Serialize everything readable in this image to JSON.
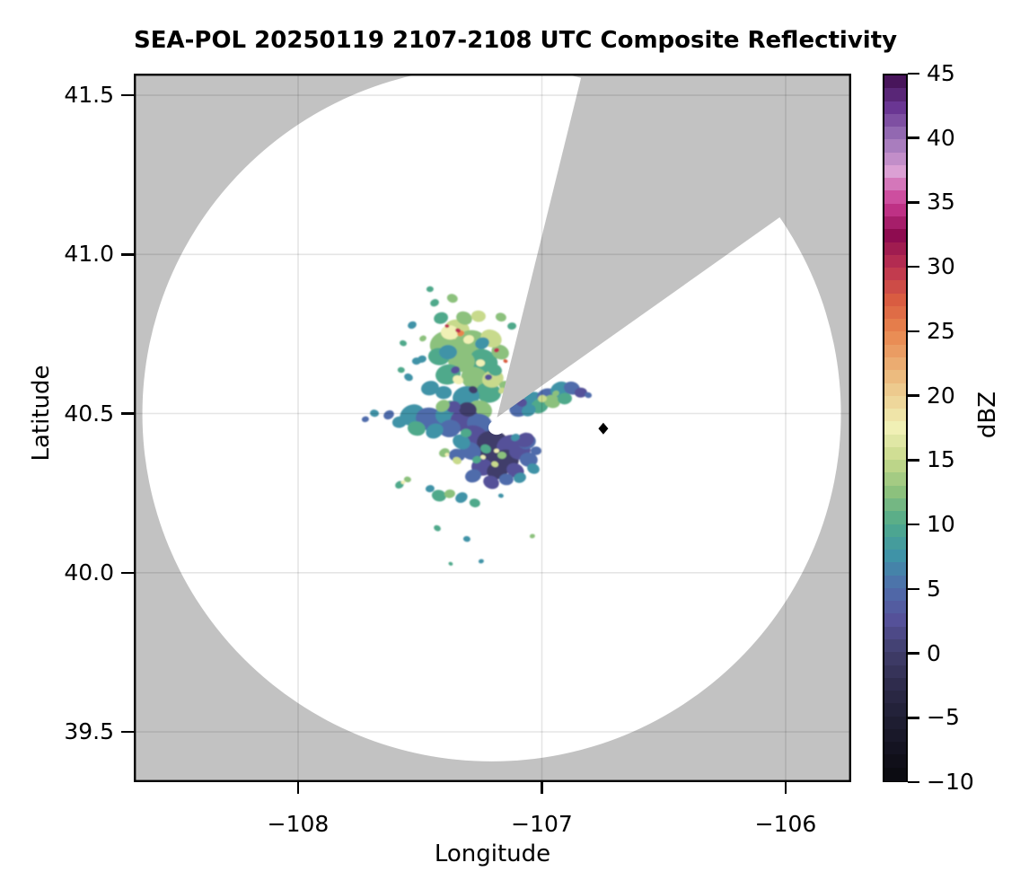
{
  "chart_data": {
    "type": "radar_composite_reflectivity_map",
    "title": "SEA-POL 20250119 2107-2108 UTC Composite Reflectivity",
    "xlabel": "Longitude",
    "ylabel": "Latitude",
    "xlim": [
      -108.674,
      -105.731
    ],
    "ylim": [
      39.342,
      41.568
    ],
    "grid": true,
    "xticks": [
      {
        "v": -108,
        "label": "−108"
      },
      {
        "v": -107,
        "label": "−107"
      },
      {
        "v": -106,
        "label": "−106"
      }
    ],
    "yticks": [
      {
        "v": 41.5,
        "label": "41.5"
      },
      {
        "v": 41.0,
        "label": "41.0"
      },
      {
        "v": 40.5,
        "label": "40.5"
      },
      {
        "v": 40.0,
        "label": "40.0"
      },
      {
        "v": 39.5,
        "label": "39.5"
      }
    ],
    "colorbar": {
      "label": "dBZ",
      "min": -10,
      "max": 45,
      "band_dbz": 1,
      "ticks": [
        {
          "v": 45,
          "label": "45"
        },
        {
          "v": 40,
          "label": "40"
        },
        {
          "v": 35,
          "label": "35"
        },
        {
          "v": 30,
          "label": "30"
        },
        {
          "v": 25,
          "label": "25"
        },
        {
          "v": 20,
          "label": "20"
        },
        {
          "v": 15,
          "label": "15"
        },
        {
          "v": 10,
          "label": "10"
        },
        {
          "v": 5,
          "label": "5"
        },
        {
          "v": 0,
          "label": "0"
        },
        {
          "v": -5,
          "label": "−5"
        },
        {
          "v": -10,
          "label": "−10"
        }
      ],
      "anchors": [
        [
          -10,
          "#0a0a0e"
        ],
        [
          -7.5,
          "#141321"
        ],
        [
          -5,
          "#201f35"
        ],
        [
          -2.5,
          "#2f2c4d"
        ],
        [
          0,
          "#403e6b"
        ],
        [
          2.5,
          "#555199"
        ],
        [
          5,
          "#4f6cab"
        ],
        [
          7.5,
          "#3f93a7"
        ],
        [
          10,
          "#4fa98b"
        ],
        [
          12.5,
          "#8cc17d"
        ],
        [
          15,
          "#c8da8c"
        ],
        [
          17.5,
          "#f0f0b5"
        ],
        [
          20,
          "#eed195"
        ],
        [
          22.5,
          "#ebac71"
        ],
        [
          25,
          "#e8854e"
        ],
        [
          27.5,
          "#d95c41"
        ],
        [
          30,
          "#bc3351"
        ],
        [
          32.5,
          "#8e0c50"
        ],
        [
          35,
          "#ca3a92"
        ],
        [
          37.5,
          "#dba0d4"
        ],
        [
          40,
          "#9c74b8"
        ],
        [
          42.5,
          "#6a3693"
        ],
        [
          45,
          "#3f0d4d"
        ]
      ]
    },
    "background": {
      "outside_range_color": "#c2c2c2",
      "inside_range_color": "#ffffff",
      "grid_color": "#000000",
      "grid_opacity": 0.1
    },
    "radar": {
      "center": {
        "lon": -107.206,
        "lat": 40.499
      },
      "range_radius_deg_lon": 1.433,
      "blocked_sector_azimuth_deg": {
        "from": 13.9,
        "to": 54.7
      },
      "site_marker": {
        "lon": -106.748,
        "lat": 40.453,
        "shape": "diamond",
        "color": "#000000"
      },
      "clear_gap": {
        "lon": -107.186,
        "lat": 40.456
      }
    },
    "echoes_format": [
      "lon",
      "lat",
      "dbz",
      "radius_px"
    ],
    "echoes": [
      [
        -107.403,
        40.721,
        12.5,
        16
      ],
      [
        -107.348,
        40.764,
        15,
        14
      ],
      [
        -107.293,
        40.721,
        12.5,
        18
      ],
      [
        -107.238,
        40.665,
        10,
        16
      ],
      [
        -107.33,
        40.665,
        12.5,
        15
      ],
      [
        -107.385,
        40.623,
        10,
        14
      ],
      [
        -107.274,
        40.609,
        12.5,
        16
      ],
      [
        -107.219,
        40.566,
        10,
        14
      ],
      [
        -107.311,
        40.552,
        7.5,
        15
      ],
      [
        -107.367,
        40.51,
        10,
        13
      ],
      [
        -107.256,
        40.51,
        12.5,
        14
      ],
      [
        -107.201,
        40.609,
        15,
        12
      ],
      [
        -107.171,
        40.693,
        12.5,
        10
      ],
      [
        -107.422,
        40.679,
        10,
        12
      ],
      [
        -107.459,
        40.58,
        7.5,
        10
      ],
      [
        -107.208,
        40.736,
        15,
        12
      ],
      [
        -107.378,
        40.755,
        17.5,
        10
      ],
      [
        -107.414,
        40.8,
        10,
        8
      ],
      [
        -107.319,
        40.8,
        12.5,
        9
      ],
      [
        -107.26,
        40.806,
        15,
        8
      ],
      [
        -107.3,
        40.733,
        17.5,
        6
      ],
      [
        -107.344,
        40.606,
        17.5,
        6
      ],
      [
        -107.252,
        40.659,
        17.5,
        5
      ],
      [
        -107.333,
        40.752,
        25,
        4
      ],
      [
        -107.344,
        40.761,
        30,
        3
      ],
      [
        -107.389,
        40.775,
        30,
        2.5
      ],
      [
        -107.186,
        40.699,
        30,
        3
      ],
      [
        -107.149,
        40.665,
        27.5,
        2.5
      ],
      [
        -107.385,
        40.693,
        7.5,
        10
      ],
      [
        -107.245,
        40.721,
        7.5,
        8
      ],
      [
        -107.193,
        40.637,
        10,
        8
      ],
      [
        -107.403,
        40.566,
        7.5,
        9
      ],
      [
        -107.355,
        40.637,
        2.5,
        5
      ],
      [
        -107.282,
        40.575,
        0,
        5
      ],
      [
        -107.219,
        40.614,
        2.5,
        4
      ],
      [
        -107.44,
        40.848,
        10,
        5
      ],
      [
        -107.367,
        40.862,
        12.5,
        6
      ],
      [
        -107.459,
        40.891,
        10,
        4
      ],
      [
        -107.532,
        40.778,
        7.5,
        5
      ],
      [
        -107.569,
        40.721,
        10,
        4
      ],
      [
        -107.514,
        40.665,
        7.5,
        5
      ],
      [
        -107.488,
        40.736,
        12.5,
        4
      ],
      [
        -107.168,
        40.803,
        12.5,
        6
      ],
      [
        -107.123,
        40.775,
        10,
        5
      ],
      [
        -107.532,
        40.496,
        7.5,
        14
      ],
      [
        -107.459,
        40.482,
        5,
        16
      ],
      [
        -107.385,
        40.496,
        7.5,
        14
      ],
      [
        -107.319,
        40.482,
        2.5,
        16
      ],
      [
        -107.256,
        40.468,
        5,
        14
      ],
      [
        -107.378,
        40.453,
        5,
        12
      ],
      [
        -107.44,
        40.445,
        7.5,
        10
      ],
      [
        -107.514,
        40.453,
        10,
        10
      ],
      [
        -107.584,
        40.473,
        7.5,
        8
      ],
      [
        -107.628,
        40.496,
        5,
        6
      ],
      [
        -107.304,
        40.513,
        0,
        10
      ],
      [
        -107.363,
        40.521,
        2.5,
        8
      ],
      [
        -107.407,
        40.524,
        12.5,
        8
      ],
      [
        -107.687,
        40.501,
        7.5,
        5
      ],
      [
        -107.724,
        40.482,
        5,
        4
      ],
      [
        -107.274,
        40.425,
        2.5,
        16
      ],
      [
        -107.201,
        40.406,
        0,
        18
      ],
      [
        -107.127,
        40.397,
        2.5,
        16
      ],
      [
        -107.219,
        40.369,
        0,
        15
      ],
      [
        -107.146,
        40.355,
        0,
        14
      ],
      [
        -107.09,
        40.383,
        2.5,
        12
      ],
      [
        -107.293,
        40.383,
        5,
        12
      ],
      [
        -107.245,
        40.332,
        2.5,
        12
      ],
      [
        -107.182,
        40.321,
        0,
        12
      ],
      [
        -107.109,
        40.321,
        2.5,
        10
      ],
      [
        -107.054,
        40.355,
        5,
        10
      ],
      [
        -107.061,
        40.411,
        5,
        10
      ],
      [
        -107.33,
        40.411,
        7.5,
        10
      ],
      [
        -107.348,
        40.369,
        5,
        9
      ],
      [
        -107.282,
        40.304,
        5,
        9
      ],
      [
        -107.208,
        40.284,
        2.5,
        9
      ],
      [
        -107.146,
        40.293,
        5,
        8
      ],
      [
        -107.09,
        40.298,
        7.5,
        7
      ],
      [
        -107.035,
        40.327,
        7.5,
        7
      ],
      [
        -107.024,
        40.383,
        5,
        6
      ],
      [
        -107.068,
        40.417,
        2.5,
        10
      ],
      [
        -107.23,
        40.389,
        10,
        6
      ],
      [
        -107.164,
        40.369,
        12.5,
        5
      ],
      [
        -107.267,
        40.355,
        10,
        5
      ],
      [
        -107.193,
        40.341,
        15,
        4
      ],
      [
        -107.311,
        40.439,
        10,
        6
      ],
      [
        -107.109,
        40.425,
        7.5,
        5
      ],
      [
        -107.241,
        40.363,
        17.5,
        3
      ],
      [
        -107.186,
        40.383,
        17.5,
        3
      ],
      [
        -107.4,
        40.377,
        12.5,
        6
      ],
      [
        -107.348,
        40.352,
        15,
        5
      ],
      [
        -107.389,
        40.371,
        17.5,
        2.5
      ],
      [
        -107.09,
        40.518,
        5,
        12
      ],
      [
        -107.031,
        40.541,
        7.5,
        12
      ],
      [
        -106.976,
        40.552,
        5,
        12
      ],
      [
        -106.925,
        40.575,
        7.5,
        11
      ],
      [
        -106.877,
        40.58,
        5,
        9
      ],
      [
        -106.84,
        40.566,
        2.5,
        7
      ],
      [
        -107.009,
        40.524,
        10,
        10
      ],
      [
        -106.958,
        40.538,
        12.5,
        9
      ],
      [
        -106.906,
        40.547,
        10,
        8
      ],
      [
        -107.054,
        40.51,
        7.5,
        8
      ],
      [
        -107.083,
        40.535,
        2.5,
        6
      ],
      [
        -106.998,
        40.547,
        15,
        5
      ],
      [
        -106.943,
        40.563,
        12.5,
        4
      ],
      [
        -106.81,
        40.558,
        5,
        4
      ],
      [
        -107.153,
        40.589,
        12.5,
        6
      ],
      [
        -107.164,
        40.572,
        15,
        4
      ],
      [
        -107.422,
        40.242,
        10,
        8
      ],
      [
        -107.378,
        40.248,
        12.5,
        6
      ],
      [
        -107.33,
        40.236,
        7.5,
        7
      ],
      [
        -107.275,
        40.219,
        10,
        6
      ],
      [
        -107.459,
        40.264,
        7.5,
        5
      ],
      [
        -107.584,
        40.276,
        10,
        5
      ],
      [
        -107.551,
        40.293,
        12.5,
        4
      ],
      [
        -107.569,
        40.284,
        17.5,
        2.5
      ],
      [
        -107.429,
        40.14,
        10,
        4
      ],
      [
        -107.308,
        40.106,
        7.5,
        4
      ],
      [
        -107.249,
        40.036,
        7.5,
        3
      ],
      [
        -107.374,
        40.028,
        10,
        2.5
      ],
      [
        -107.168,
        40.242,
        7.5,
        3
      ],
      [
        -107.039,
        40.115,
        12.5,
        3
      ],
      [
        -107.547,
        40.614,
        7.5,
        5
      ],
      [
        -107.577,
        40.637,
        10,
        4
      ],
      [
        -107.492,
        40.671,
        7.5,
        5
      ]
    ]
  }
}
